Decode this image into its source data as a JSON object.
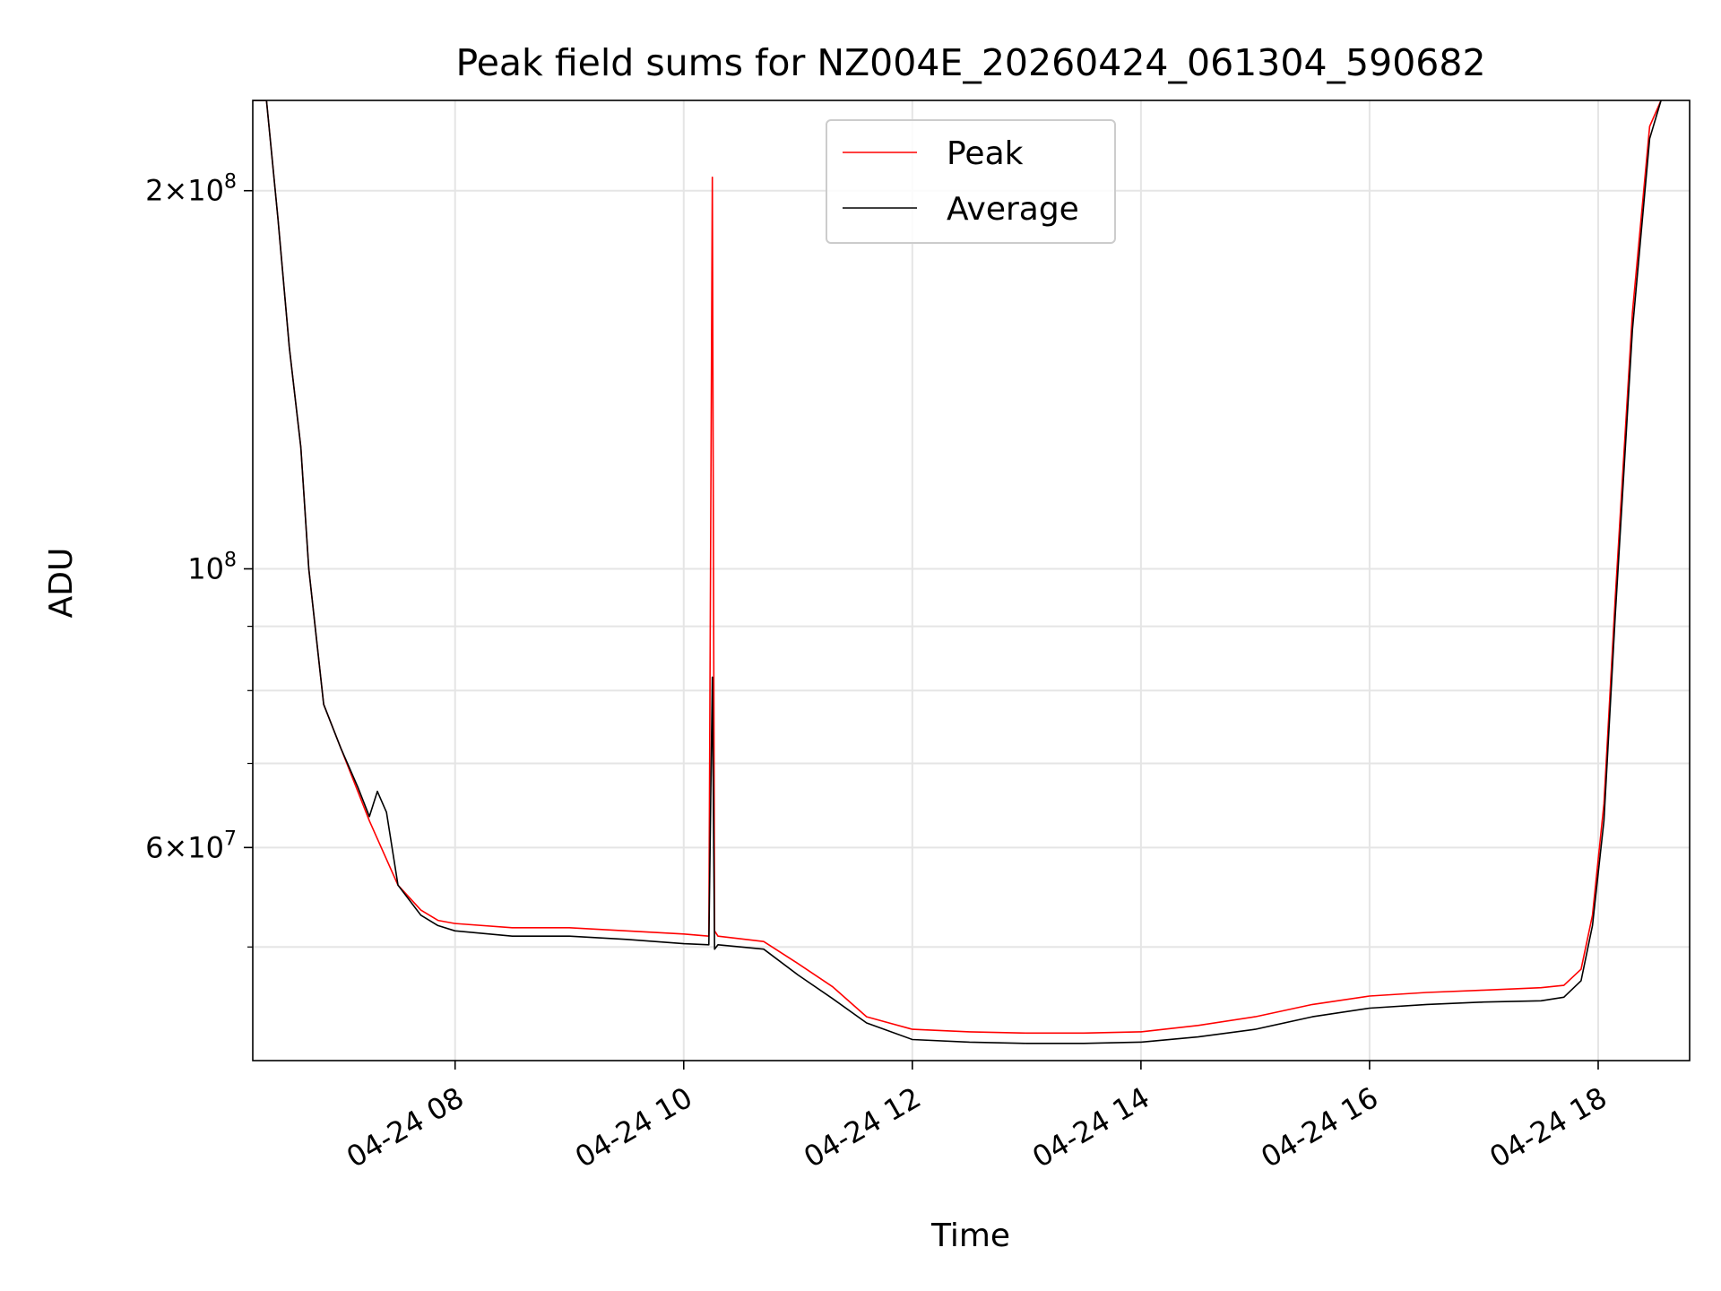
{
  "chart_data": {
    "type": "line",
    "title": "Peak field sums for NZ004E_20260424_061304_590682",
    "xlabel": "Time",
    "ylabel": "ADU",
    "yscale": "log",
    "xlim": [
      6.23,
      18.8
    ],
    "ylim": [
      40600000,
      236000000
    ],
    "x_ticks": [
      8,
      10,
      12,
      14,
      16,
      18
    ],
    "x_tick_labels": [
      "04-24 08",
      "04-24 10",
      "04-24 12",
      "04-24 14",
      "04-24 16",
      "04-24 18"
    ],
    "y_ticks": [
      {
        "value": 200000000,
        "mant": "2",
        "exp": "8"
      },
      {
        "value": 100000000,
        "mant": "",
        "exp": "8"
      },
      {
        "value": 60000000,
        "mant": "6",
        "exp": "7"
      }
    ],
    "y_minor_grid": [
      50000000,
      70000000,
      80000000,
      90000000
    ],
    "grid": true,
    "legend": {
      "position": "top-center",
      "entries": [
        "Peak",
        "Average"
      ]
    },
    "series": [
      {
        "name": "Peak",
        "color": "#ff0000",
        "x": [
          6.23,
          6.35,
          6.45,
          6.55,
          6.65,
          6.72,
          6.85,
          7.0,
          7.25,
          7.5,
          7.7,
          7.85,
          8.0,
          8.5,
          9.0,
          9.5,
          10.0,
          10.22,
          10.25,
          10.27,
          10.3,
          10.7,
          11.0,
          11.3,
          11.6,
          12.0,
          12.5,
          13.0,
          13.5,
          14.0,
          14.5,
          15.0,
          15.5,
          16.0,
          16.5,
          17.0,
          17.5,
          17.7,
          17.85,
          17.95,
          18.05,
          18.15,
          18.3,
          18.45,
          18.55
        ],
        "y": [
          236000000,
          236000000,
          190000000,
          150000000,
          125000000,
          100000000,
          78000000,
          72000000,
          63000000,
          56000000,
          53500000,
          52500000,
          52200000,
          51800000,
          51800000,
          51500000,
          51200000,
          51000000,
          205000000,
          51500000,
          51000000,
          50500000,
          48500000,
          46500000,
          44000000,
          43000000,
          42800000,
          42700000,
          42700000,
          42800000,
          43300000,
          44000000,
          45000000,
          45700000,
          46000000,
          46200000,
          46400000,
          46600000,
          48000000,
          53000000,
          65000000,
          95000000,
          160000000,
          225000000,
          236000000
        ]
      },
      {
        "name": "Average",
        "color": "#000000",
        "x": [
          6.23,
          6.35,
          6.45,
          6.55,
          6.65,
          6.72,
          6.85,
          7.0,
          7.15,
          7.25,
          7.32,
          7.4,
          7.5,
          7.7,
          7.85,
          8.0,
          8.5,
          9.0,
          9.5,
          10.0,
          10.22,
          10.25,
          10.27,
          10.3,
          10.7,
          11.0,
          11.3,
          11.6,
          12.0,
          12.5,
          13.0,
          13.5,
          14.0,
          14.5,
          15.0,
          15.5,
          16.0,
          16.5,
          17.0,
          17.5,
          17.7,
          17.85,
          17.95,
          18.05,
          18.15,
          18.3,
          18.45,
          18.55
        ],
        "y": [
          236000000,
          236000000,
          190000000,
          150000000,
          125000000,
          100000000,
          78000000,
          72000000,
          67000000,
          63500000,
          66500000,
          64000000,
          56000000,
          53000000,
          52000000,
          51500000,
          51000000,
          51000000,
          50700000,
          50300000,
          50200000,
          82000000,
          49800000,
          50200000,
          49800000,
          47500000,
          45500000,
          43500000,
          42200000,
          42000000,
          41900000,
          41900000,
          42000000,
          42400000,
          43000000,
          44000000,
          44700000,
          45000000,
          45200000,
          45300000,
          45600000,
          47000000,
          52000000,
          63000000,
          92000000,
          155000000,
          220000000,
          236000000
        ]
      }
    ]
  }
}
